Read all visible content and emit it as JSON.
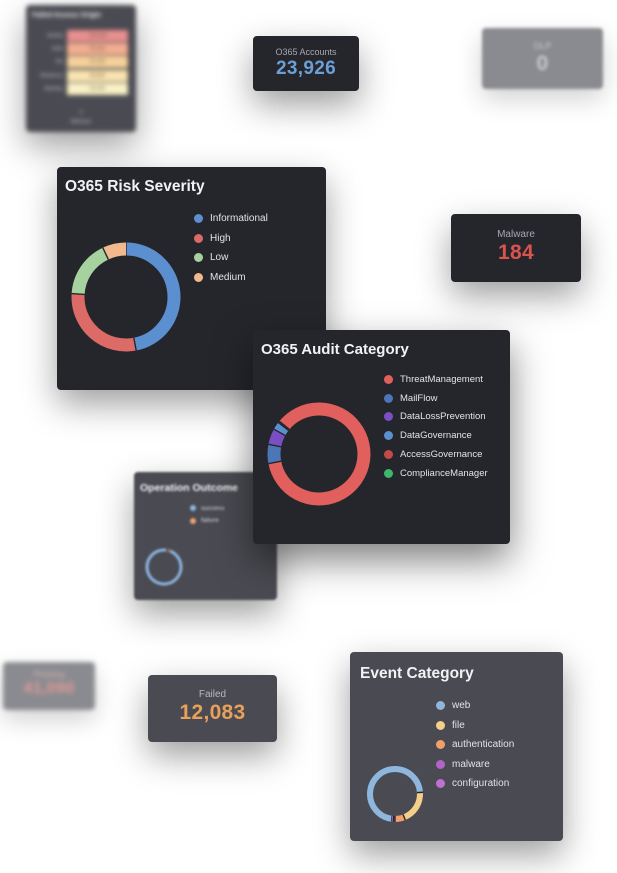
{
  "colors": {
    "dark_panel": "#25262c",
    "mid_panel": "#4a4b52",
    "blue_value": "#6b9fd6",
    "red_value": "#d9534f",
    "orange_value": "#e8a05a"
  },
  "failed_access_origin": {
    "title": "Failed Access Origin",
    "rows": [
      {
        "key": "Arimba",
        "value": "100,088",
        "color": "#e78f8f"
      },
      {
        "key": "Sofia",
        "value": "90,000",
        "color": "#f2ad8f"
      },
      {
        "key": "Hirt",
        "value": "87,000",
        "color": "#f7d19b"
      },
      {
        "key": "Monterrey",
        "value": "90,894",
        "color": "#f9e4b0"
      },
      {
        "key": "Starrbay",
        "value": "94,440",
        "color": "#fbf1c6"
      }
    ],
    "footer_value": "5",
    "footer_label": "Minimum"
  },
  "o365_accounts": {
    "label": "O365 Accounts",
    "value": "23,926"
  },
  "dlp": {
    "label": "DLP",
    "value": "0"
  },
  "malware": {
    "label": "Malware",
    "value": "184"
  },
  "phishing": {
    "label": "Phishing",
    "value": "41,090"
  },
  "failed": {
    "label": "Failed",
    "value": "12,083"
  },
  "risk_severity": {
    "title": "O365 Risk Severity",
    "legend": [
      {
        "label": "Informational",
        "color": "#5b8fd0"
      },
      {
        "label": "High",
        "color": "#dc6a67"
      },
      {
        "label": "Low",
        "color": "#a6d2a0"
      },
      {
        "label": "Medium",
        "color": "#f2b98e"
      }
    ],
    "donut": [
      {
        "name": "Informational",
        "value": 47,
        "color": "#5b8fd0"
      },
      {
        "name": "High",
        "value": 29,
        "color": "#dc6a67"
      },
      {
        "name": "Low",
        "value": 17,
        "color": "#a6d2a0"
      },
      {
        "name": "Medium",
        "value": 7,
        "color": "#f2b98e"
      }
    ]
  },
  "audit_category": {
    "title": "O365 Audit Category",
    "legend": [
      {
        "label": "ThreatManagement",
        "color": "#e15f5c"
      },
      {
        "label": "MailFlow",
        "color": "#4d76b6"
      },
      {
        "label": "DataLossPrevention",
        "color": "#7b4fc4"
      },
      {
        "label": "DataGovernance",
        "color": "#5b8fd0"
      },
      {
        "label": "AccessGovernance",
        "color": "#c24b48"
      },
      {
        "label": "ComplianceManager",
        "color": "#3fb56d"
      }
    ],
    "donut": [
      {
        "name": "ThreatManagement",
        "value": 86,
        "color": "#e15f5c"
      },
      {
        "name": "MailFlow",
        "value": 6,
        "color": "#4d76b6"
      },
      {
        "name": "DataLossPrevention",
        "value": 5,
        "color": "#7b4fc4"
      },
      {
        "name": "DataGovernance",
        "value": 2.5,
        "color": "#5b8fd0"
      },
      {
        "name": "AccessGovernance",
        "value": 0.3,
        "color": "#c24b48"
      },
      {
        "name": "ComplianceManager",
        "value": 0.2,
        "color": "#3fb56d"
      }
    ]
  },
  "operation_outcome": {
    "title": "Operation Outcome",
    "legend": [
      {
        "label": "success",
        "color": "#8cb3e0"
      },
      {
        "label": "failure",
        "color": "#f2a06b"
      }
    ],
    "donut": [
      {
        "name": "success",
        "value": 98,
        "color": "#8cb3e0"
      },
      {
        "name": "failure",
        "value": 2,
        "color": "#f2a06b"
      }
    ]
  },
  "event_category": {
    "title": "Event Category",
    "legend": [
      {
        "label": "web",
        "color": "#8fb7de"
      },
      {
        "label": "file",
        "color": "#f4cf8a"
      },
      {
        "label": "authentication",
        "color": "#f2a06b"
      },
      {
        "label": "malware",
        "color": "#b463c9"
      },
      {
        "label": "configuration",
        "color": "#c070d0"
      }
    ],
    "donut": [
      {
        "name": "web",
        "value": 72,
        "color": "#8fb7de"
      },
      {
        "name": "file",
        "value": 20,
        "color": "#f4cf8a"
      },
      {
        "name": "authentication",
        "value": 6,
        "color": "#f2a06b"
      },
      {
        "name": "malware",
        "value": 1,
        "color": "#b463c9"
      },
      {
        "name": "configuration",
        "value": 1,
        "color": "#c070d0"
      }
    ]
  }
}
